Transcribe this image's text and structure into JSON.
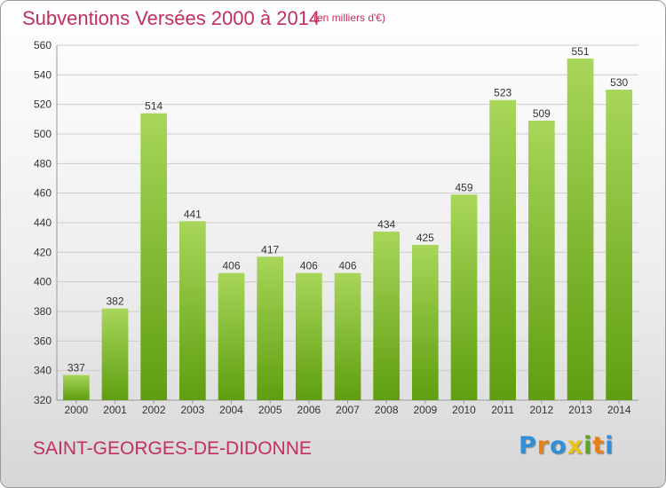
{
  "header": {
    "title": "Subventions Versées 2000 à 2014",
    "subtitle": "(en milliers d'€)"
  },
  "footer": {
    "commune": "SAINT-GEORGES-DE-DIDONNE",
    "logo_letters": [
      "P",
      "r",
      "o",
      "x",
      "i",
      "t",
      "i"
    ]
  },
  "colors": {
    "title": "#c2305c",
    "bar_top": "#a8d65a",
    "bar_bottom": "#5e9e10",
    "grid": "#cccccc",
    "logo": [
      "#2f8fd8",
      "#e8801a",
      "#2f8fd8",
      "#e8c218",
      "#5aa820",
      "#e8801a",
      "#2f8fd8"
    ]
  },
  "chart_data": {
    "type": "bar",
    "title": "Subventions Versées 2000 à 2014",
    "subtitle": "(en milliers d'€)",
    "categories": [
      "2000",
      "2001",
      "2002",
      "2003",
      "2004",
      "2005",
      "2006",
      "2007",
      "2008",
      "2009",
      "2010",
      "2011",
      "2012",
      "2013",
      "2014"
    ],
    "values": [
      337,
      382,
      514,
      441,
      406,
      417,
      406,
      406,
      434,
      425,
      459,
      523,
      509,
      551,
      530
    ],
    "ylim": [
      320,
      560
    ],
    "yticks": [
      320,
      340,
      360,
      380,
      400,
      420,
      440,
      460,
      480,
      500,
      520,
      540,
      560
    ],
    "grid": true,
    "data_labels": true
  }
}
